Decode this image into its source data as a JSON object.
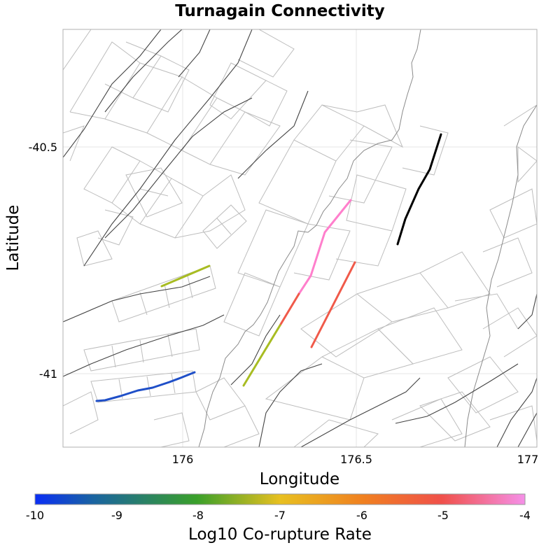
{
  "title": "Turnagain Connectivity",
  "map": {
    "xlabel": "Longitude",
    "ylabel": "Latitude",
    "x_ticks": [
      "176",
      "176.5",
      "177"
    ],
    "y_ticks": [
      "-40.5",
      "-41"
    ],
    "xlim": [
      175.78,
      177.0
    ],
    "ylim": [
      -41.16,
      -40.24
    ]
  },
  "colorbar": {
    "label": "Log10 Co-rupture Rate",
    "ticks": [
      "-10",
      "-9",
      "-8",
      "-7",
      "-6",
      "-5",
      "-4"
    ],
    "range": [
      -10,
      -4
    ],
    "colors": [
      "#1a3cf0",
      "#3aa02a",
      "#f0c020",
      "#f05a28",
      "#f58ae8"
    ]
  },
  "colored_faults": [
    {
      "name": "Turnagain (target fault)",
      "color": "#000000"
    },
    {
      "name": "rupture-pink",
      "color": "#ff7fcc"
    },
    {
      "name": "rupture-red",
      "color": "#f05a4a"
    },
    {
      "name": "rupture-olive",
      "color": "#a8bc22"
    },
    {
      "name": "rupture-blue",
      "color": "#1f4fc8"
    }
  ]
}
